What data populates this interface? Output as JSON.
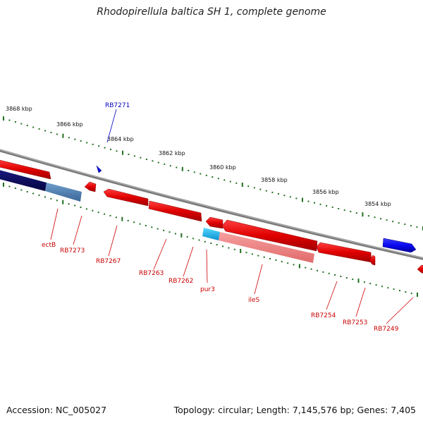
{
  "title": "Rhodopirellula baltica SH 1, complete genome",
  "footer": {
    "accession": "Accession: NC_005027",
    "summary": "Topology: circular; Length: 7,145,576 bp; Genes: 7,405"
  },
  "scale_labels": [
    "3868 kbp",
    "3866 kbp",
    "3864 kbp",
    "3862 kbp",
    "3860 kbp",
    "3858 kbp",
    "3856 kbp",
    "3854 kbp"
  ],
  "gene_labels_forward": [
    "RB7271"
  ],
  "gene_labels_reverse": [
    "ectB",
    "RB7273",
    "RB7267",
    "RB7263",
    "RB7262",
    "pur3",
    "ileS",
    "RB7254",
    "RB7253",
    "RB7249"
  ],
  "colors": {
    "forward_gene": "#1010e0",
    "reverse_gene": "#e81010",
    "backbone": "#808080",
    "tick": "#207020",
    "highlight_cds": "#f08080",
    "highlight_rna": "#1ab0e8",
    "dark_feature": "#0a0a6e",
    "steel_feature": "#5080b0"
  }
}
